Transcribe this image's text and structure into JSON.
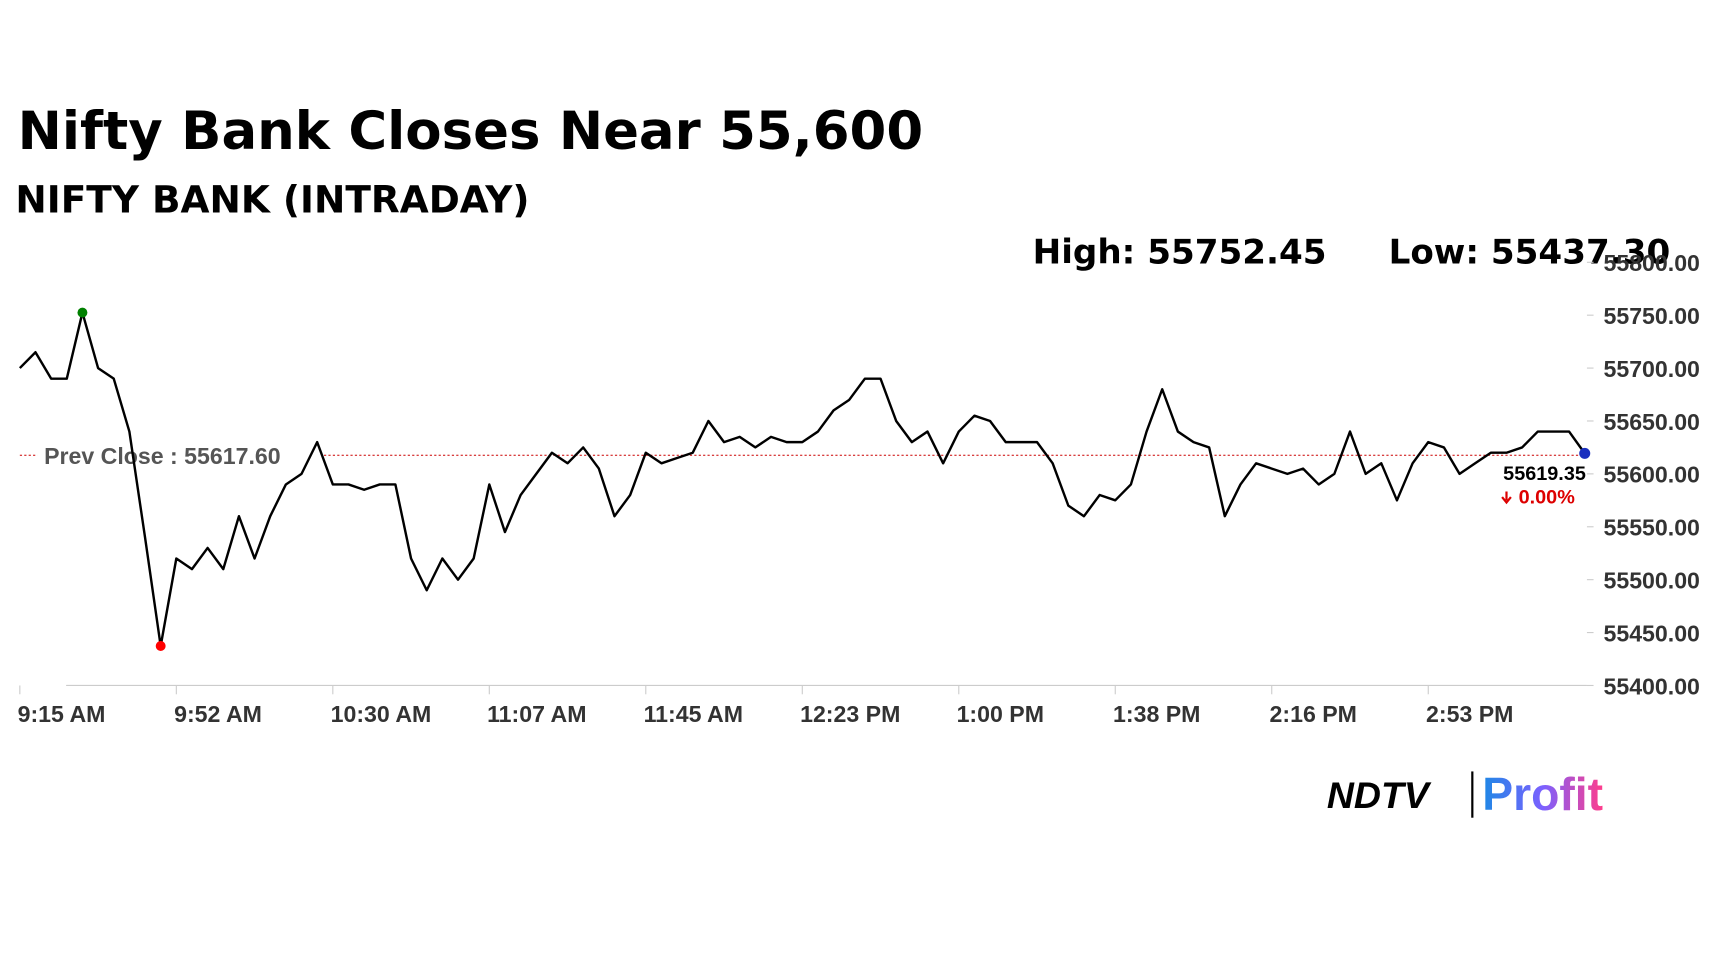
{
  "chart_data": {
    "type": "line",
    "title": "Nifty Bank Closes Near 55,600",
    "subtitle": "NIFTY BANK (INTRADAY)",
    "high": {
      "value": 55752.45,
      "label": "High: 55752.45"
    },
    "low": {
      "value": 55437.3,
      "label": "Low: 55437.30"
    },
    "prev_close": {
      "value": 55617.6,
      "label": "Prev Close : 55617.60"
    },
    "last": {
      "value": 55619.35,
      "label": "55619.35"
    },
    "change_label": "0.00%",
    "color": "#000000",
    "categories": [
      "9:15 AM",
      null,
      null,
      null,
      null,
      null,
      null,
      null,
      null,
      null,
      "9:52 AM",
      null,
      null,
      null,
      null,
      null,
      null,
      null,
      null,
      null,
      "10:30 AM",
      null,
      null,
      null,
      null,
      null,
      null,
      null,
      null,
      null,
      "11:07 AM",
      null,
      null,
      null,
      null,
      null,
      null,
      null,
      null,
      null,
      "11:45 AM",
      null,
      null,
      null,
      null,
      null,
      null,
      null,
      null,
      null,
      "12:23 PM",
      null,
      null,
      null,
      null,
      null,
      null,
      null,
      null,
      null,
      "1:00 PM",
      null,
      null,
      null,
      null,
      null,
      null,
      null,
      null,
      null,
      "1:38 PM",
      null,
      null,
      null,
      null,
      null,
      null,
      null,
      null,
      null,
      "2:16 PM",
      null,
      null,
      null,
      null,
      null,
      null,
      null,
      null,
      null,
      "2:53 PM",
      null,
      null,
      null,
      null,
      null,
      null,
      null,
      null,
      null,
      null
    ],
    "values": [
      55700,
      55715,
      55690,
      55690,
      55752.45,
      55700,
      55690,
      55640,
      55540,
      55437.3,
      55520,
      55510,
      55530,
      55510,
      55560,
      55520,
      55560,
      55590,
      55600,
      55630,
      55590,
      55590,
      55585,
      55590,
      55590,
      55520,
      55490,
      55520,
      55500,
      55520,
      55590,
      55545,
      55580,
      55600,
      55620,
      55610,
      55625,
      55605,
      55560,
      55580,
      55620,
      55610,
      55615,
      55620,
      55650,
      55630,
      55635,
      55625,
      55635,
      55630,
      55630,
      55640,
      55660,
      55670,
      55690,
      55690,
      55650,
      55630,
      55640,
      55610,
      55640,
      55655,
      55650,
      55630,
      55630,
      55630,
      55610,
      55570,
      55560,
      55580,
      55575,
      55590,
      55640,
      55680,
      55640,
      55630,
      55625,
      55560,
      55590,
      55610,
      55605,
      55600,
      55605,
      55590,
      55600,
      55640,
      55600,
      55610,
      55575,
      55610,
      55630,
      55625,
      55600,
      55610,
      55620,
      55620,
      55625,
      55640,
      55640,
      55640,
      55619.35
    ],
    "ylim": [
      55400,
      55800
    ],
    "yticks": [
      {
        "value": 55400,
        "label": "55400.00"
      },
      {
        "value": 55450,
        "label": "55450.00"
      },
      {
        "value": 55500,
        "label": "55500.00"
      },
      {
        "value": 55550,
        "label": "55550.00"
      },
      {
        "value": 55600,
        "label": "55600.00"
      },
      {
        "value": 55650,
        "label": "55650.00"
      },
      {
        "value": 55700,
        "label": "55700.00"
      },
      {
        "value": 55750,
        "label": "55750.00"
      },
      {
        "value": 55800,
        "label": "55800.00"
      }
    ],
    "brand": [
      "NDTV",
      "Profit"
    ]
  }
}
